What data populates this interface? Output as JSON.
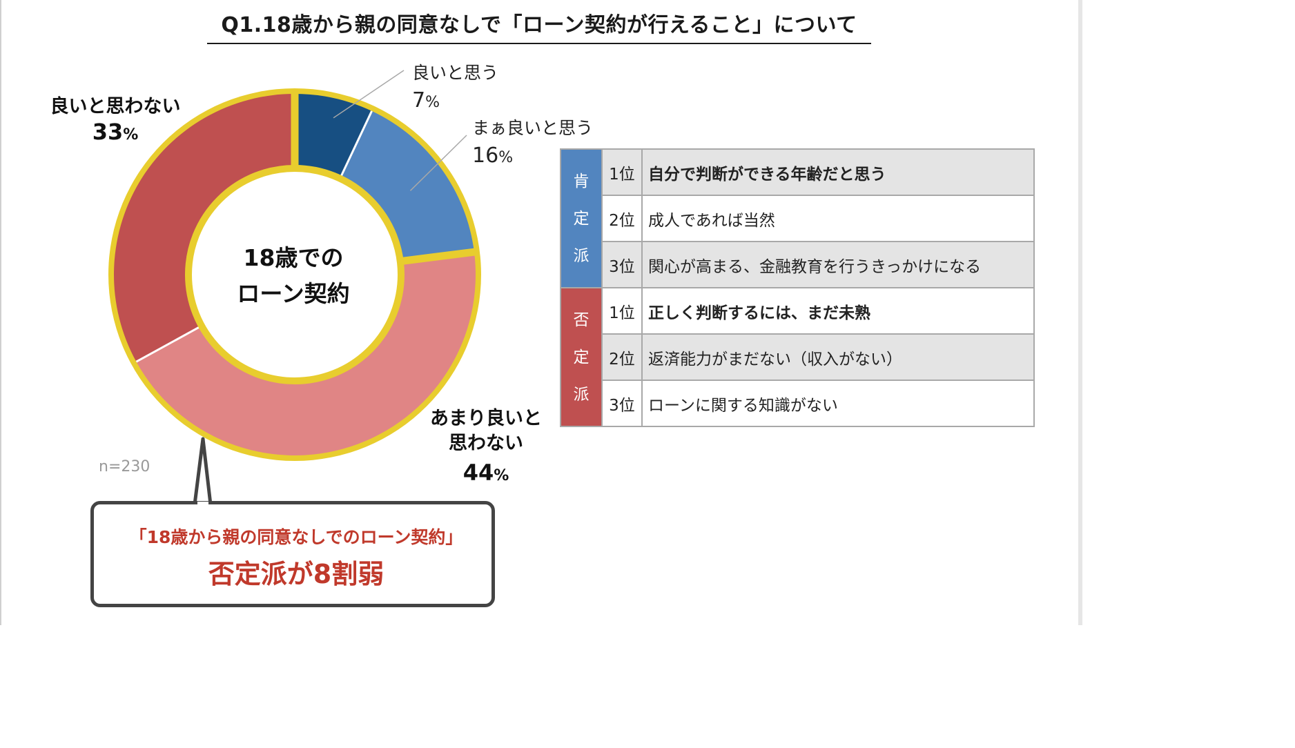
{
  "title": "Q1.18歳から親の同意なしで「ローン契約が行えること」について",
  "center_label": [
    "18歳での",
    "ローン契約"
  ],
  "sample_note": "n=230",
  "colors": {
    "ring": "#e8cd2e",
    "good": "#174f82",
    "somewhat_good": "#5285bf",
    "not_very_good": "#e08585",
    "not_good": "#bf5050",
    "affirmative": "#5285bf",
    "negative": "#bf5050",
    "callout_text": "#c0392b"
  },
  "chart_data": {
    "type": "pie",
    "title": "Q1.18歳から親の同意なしで「ローン契約が行えること」について",
    "slices": [
      {
        "name": "良いと思う",
        "value": 7
      },
      {
        "name": "まぁ良いと思う",
        "value": 16
      },
      {
        "name": "あまり良いと思わない",
        "value": 44
      },
      {
        "name": "良いと思わない",
        "value": 33
      }
    ],
    "unit": "%",
    "donut": true,
    "center_text": "18歳でのローン契約",
    "n": 230
  },
  "labels": {
    "good": {
      "name": "良いと思う",
      "pct": "7",
      "unit": "%"
    },
    "somewhat_good": {
      "name": "まぁ良いと思う",
      "pct": "16",
      "unit": "%"
    },
    "not_very_good": {
      "name1": "あまり良いと",
      "name2": "思わない",
      "pct": "44",
      "unit": "%"
    },
    "not_good": {
      "name": "良いと思わない",
      "pct": "33",
      "unit": "%"
    }
  },
  "callout": {
    "line1": "「18歳から親の同意なしでのローン契約」",
    "line2": "否定派が8割弱"
  },
  "reasons": {
    "affirmative": {
      "group_label": [
        "肯",
        "定",
        "派"
      ],
      "rows": [
        {
          "rank": "1位",
          "text": "自分で判断ができる年齢だと思う",
          "bold": true
        },
        {
          "rank": "2位",
          "text": "成人であれば当然",
          "bold": false
        },
        {
          "rank": "3位",
          "text": "関心が高まる、金融教育を行うきっかけになる",
          "bold": false
        }
      ]
    },
    "negative": {
      "group_label": [
        "否",
        "定",
        "派"
      ],
      "rows": [
        {
          "rank": "1位",
          "text": "正しく判断するには、まだ未熟",
          "bold": true
        },
        {
          "rank": "2位",
          "text": "返済能力がまだない（収入がない）",
          "bold": false
        },
        {
          "rank": "3位",
          "text": "ローンに関する知識がない",
          "bold": false
        }
      ]
    }
  }
}
